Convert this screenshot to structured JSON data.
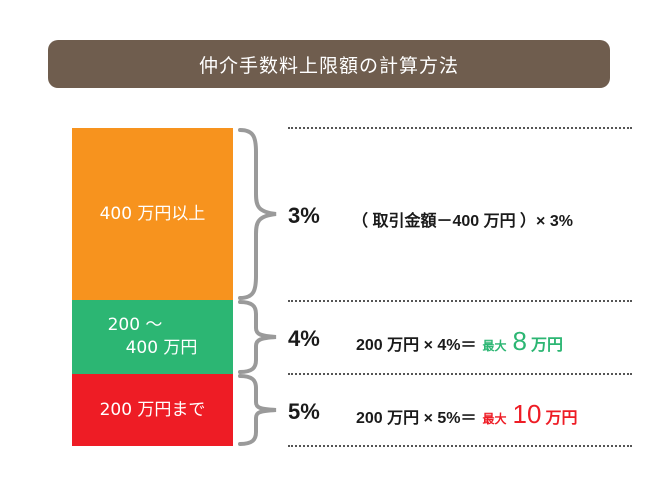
{
  "title": "仲介手数料上限額の計算方法",
  "colors": {
    "title_bg": "#6f5d4e",
    "tier_high": "#f7931e",
    "tier_mid": "#2cb673",
    "tier_low": "#ee1c25",
    "max_mid": "#2cb673",
    "max_low": "#ee1c25"
  },
  "tiers": [
    {
      "label": "400 万円以上",
      "rate": "3%",
      "formula": "（ 取引金額－400 万円 ）× 3%"
    },
    {
      "label_line1": "200 ～",
      "label_line2": "400 万円",
      "rate": "4%",
      "formula": "200 万円 × 4%＝",
      "max_label": "最大",
      "max_value": "8",
      "max_unit": "万円"
    },
    {
      "label": "200 万円まで",
      "rate": "5%",
      "formula": "200 万円 × 5%＝",
      "max_label": "最大",
      "max_value": "10",
      "max_unit": "万円"
    }
  ]
}
